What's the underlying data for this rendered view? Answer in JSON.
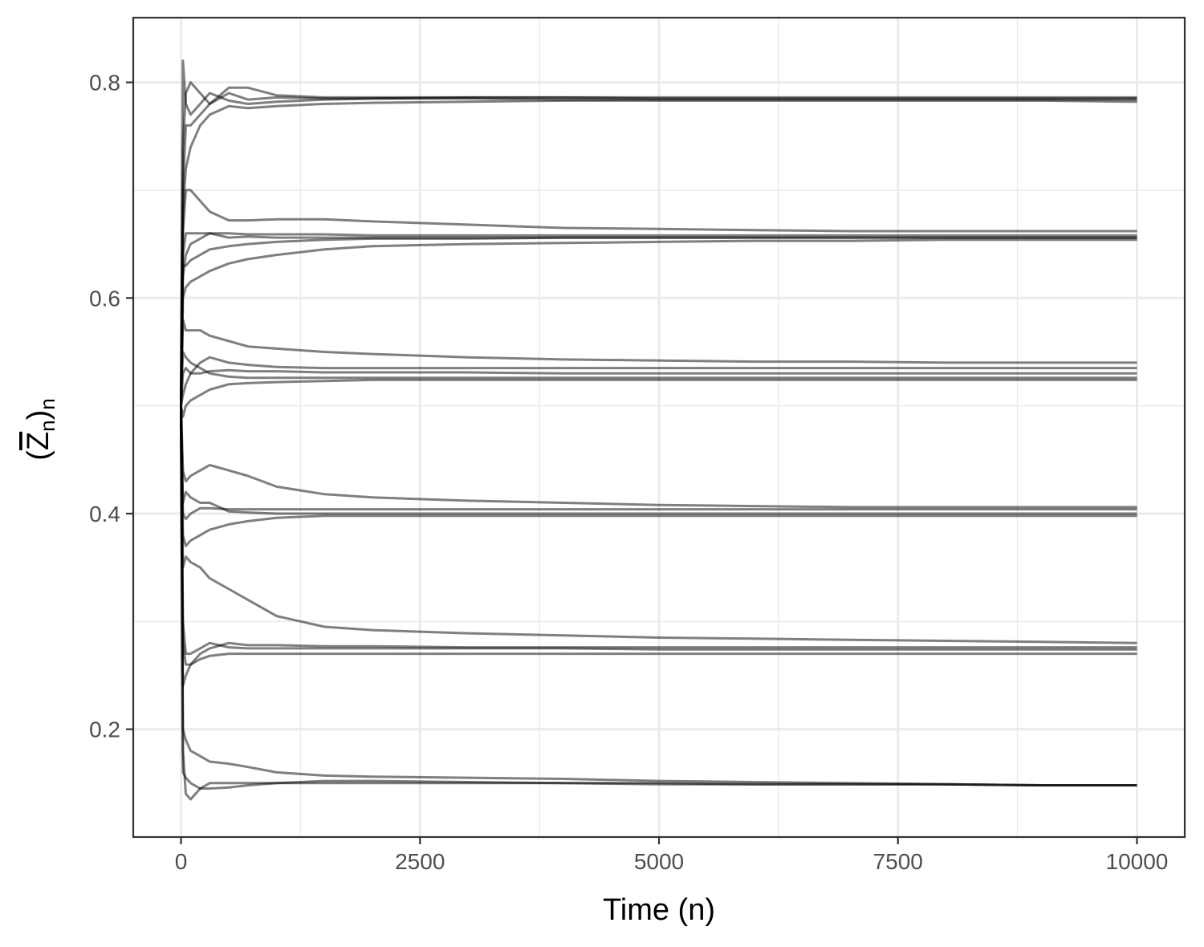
{
  "chart_data": {
    "type": "line",
    "title": "",
    "xlabel": "Time (n)",
    "ylabel": "(Z̄n)n",
    "ylabel_parts": {
      "open": "(",
      "var": "Z",
      "sub_inner": "n",
      "close": ")",
      "sub_outer": "n"
    },
    "xlim": [
      -500,
      10500
    ],
    "ylim": [
      0.1,
      0.86
    ],
    "x_ticks": [
      0,
      2500,
      5000,
      7500,
      10000
    ],
    "x_tick_labels": [
      "0",
      "2500",
      "5000",
      "7500",
      "10000"
    ],
    "y_ticks": [
      0.2,
      0.4,
      0.6,
      0.8
    ],
    "y_tick_labels": [
      "0.2",
      "0.4",
      "0.6",
      "0.8"
    ],
    "grid": true,
    "legend": "none",
    "series_color": "#000000",
    "series_opacity": 0.5,
    "x": [
      0,
      20,
      50,
      100,
      200,
      300,
      500,
      700,
      1000,
      1500,
      2000,
      3000,
      4000,
      5000,
      6000,
      7000,
      8000,
      9000,
      10000
    ],
    "series": [
      {
        "values": [
          0.5,
          0.74,
          0.79,
          0.8,
          0.79,
          0.78,
          0.79,
          0.784,
          0.786,
          0.785,
          0.785,
          0.785,
          0.784,
          0.784,
          0.784,
          0.784,
          0.784,
          0.784,
          0.784
        ]
      },
      {
        "values": [
          0.5,
          0.7,
          0.76,
          0.76,
          0.77,
          0.78,
          0.795,
          0.795,
          0.788,
          0.786,
          0.786,
          0.786,
          0.786,
          0.785,
          0.785,
          0.785,
          0.785,
          0.785,
          0.785
        ]
      },
      {
        "values": [
          0.5,
          0.68,
          0.72,
          0.74,
          0.76,
          0.77,
          0.778,
          0.776,
          0.778,
          0.78,
          0.781,
          0.782,
          0.783,
          0.783,
          0.783,
          0.783,
          0.783,
          0.783,
          0.782
        ]
      },
      {
        "values": [
          0.5,
          0.82,
          0.78,
          0.77,
          0.78,
          0.79,
          0.783,
          0.78,
          0.782,
          0.784,
          0.785,
          0.786,
          0.786,
          0.786,
          0.786,
          0.786,
          0.786,
          0.786,
          0.786
        ]
      },
      {
        "values": [
          0.5,
          0.66,
          0.7,
          0.7,
          0.69,
          0.68,
          0.672,
          0.672,
          0.673,
          0.673,
          0.671,
          0.668,
          0.665,
          0.664,
          0.663,
          0.662,
          0.662,
          0.662,
          0.662
        ]
      },
      {
        "values": [
          0.5,
          0.64,
          0.66,
          0.66,
          0.66,
          0.66,
          0.656,
          0.657,
          0.656,
          0.656,
          0.656,
          0.656,
          0.656,
          0.656,
          0.656,
          0.656,
          0.656,
          0.656,
          0.656
        ]
      },
      {
        "values": [
          0.5,
          0.62,
          0.64,
          0.65,
          0.655,
          0.66,
          0.66,
          0.659,
          0.659,
          0.659,
          0.658,
          0.658,
          0.658,
          0.658,
          0.658,
          0.658,
          0.658,
          0.658,
          0.658
        ]
      },
      {
        "values": [
          0.5,
          0.6,
          0.61,
          0.615,
          0.62,
          0.625,
          0.632,
          0.636,
          0.64,
          0.645,
          0.648,
          0.65,
          0.651,
          0.652,
          0.653,
          0.653,
          0.654,
          0.654,
          0.654
        ]
      },
      {
        "values": [
          0.5,
          0.63,
          0.63,
          0.635,
          0.64,
          0.645,
          0.648,
          0.65,
          0.652,
          0.654,
          0.655,
          0.655,
          0.656,
          0.656,
          0.656,
          0.656,
          0.656,
          0.656,
          0.656
        ]
      },
      {
        "values": [
          0.5,
          0.58,
          0.57,
          0.57,
          0.57,
          0.565,
          0.56,
          0.555,
          0.553,
          0.55,
          0.548,
          0.545,
          0.543,
          0.542,
          0.541,
          0.541,
          0.54,
          0.54,
          0.54
        ]
      },
      {
        "values": [
          0.5,
          0.53,
          0.535,
          0.53,
          0.53,
          0.532,
          0.533,
          0.532,
          0.532,
          0.531,
          0.531,
          0.531,
          0.53,
          0.53,
          0.53,
          0.53,
          0.53,
          0.53,
          0.53
        ]
      },
      {
        "values": [
          0.5,
          0.49,
          0.5,
          0.505,
          0.51,
          0.515,
          0.52,
          0.521,
          0.522,
          0.523,
          0.524,
          0.524,
          0.524,
          0.524,
          0.524,
          0.524,
          0.524,
          0.524,
          0.524
        ]
      },
      {
        "values": [
          0.5,
          0.51,
          0.52,
          0.53,
          0.54,
          0.545,
          0.54,
          0.538,
          0.536,
          0.535,
          0.535,
          0.535,
          0.535,
          0.535,
          0.535,
          0.535,
          0.535,
          0.535,
          0.535
        ]
      },
      {
        "values": [
          0.5,
          0.55,
          0.545,
          0.54,
          0.535,
          0.53,
          0.527,
          0.526,
          0.526,
          0.526,
          0.526,
          0.526,
          0.526,
          0.526,
          0.526,
          0.526,
          0.526,
          0.526,
          0.526
        ]
      },
      {
        "values": [
          0.5,
          0.44,
          0.43,
          0.435,
          0.44,
          0.445,
          0.44,
          0.435,
          0.425,
          0.418,
          0.415,
          0.412,
          0.41,
          0.408,
          0.407,
          0.406,
          0.406,
          0.406,
          0.406
        ]
      },
      {
        "values": [
          0.5,
          0.4,
          0.395,
          0.4,
          0.405,
          0.405,
          0.404,
          0.404,
          0.404,
          0.404,
          0.404,
          0.404,
          0.404,
          0.404,
          0.404,
          0.404,
          0.404,
          0.404,
          0.404
        ]
      },
      {
        "values": [
          0.5,
          0.38,
          0.37,
          0.375,
          0.38,
          0.385,
          0.39,
          0.393,
          0.396,
          0.398,
          0.398,
          0.398,
          0.398,
          0.398,
          0.398,
          0.398,
          0.398,
          0.398,
          0.398
        ]
      },
      {
        "values": [
          0.5,
          0.41,
          0.42,
          0.415,
          0.41,
          0.41,
          0.402,
          0.401,
          0.4,
          0.4,
          0.4,
          0.4,
          0.4,
          0.4,
          0.4,
          0.4,
          0.4,
          0.4,
          0.4
        ]
      },
      {
        "values": [
          0.5,
          0.3,
          0.27,
          0.27,
          0.275,
          0.28,
          0.276,
          0.275,
          0.275,
          0.275,
          0.275,
          0.275,
          0.275,
          0.274,
          0.274,
          0.274,
          0.274,
          0.274,
          0.274
        ]
      },
      {
        "values": [
          0.5,
          0.28,
          0.26,
          0.26,
          0.265,
          0.268,
          0.27,
          0.27,
          0.27,
          0.27,
          0.27,
          0.27,
          0.27,
          0.27,
          0.27,
          0.27,
          0.27,
          0.27,
          0.27
        ]
      },
      {
        "values": [
          0.5,
          0.35,
          0.36,
          0.355,
          0.35,
          0.34,
          0.33,
          0.32,
          0.305,
          0.295,
          0.292,
          0.289,
          0.287,
          0.285,
          0.284,
          0.283,
          0.282,
          0.281,
          0.28
        ]
      },
      {
        "values": [
          0.5,
          0.24,
          0.25,
          0.26,
          0.27,
          0.275,
          0.28,
          0.278,
          0.278,
          0.277,
          0.277,
          0.276,
          0.276,
          0.276,
          0.276,
          0.276,
          0.276,
          0.276,
          0.276
        ]
      },
      {
        "values": [
          0.5,
          0.18,
          0.14,
          0.135,
          0.145,
          0.15,
          0.15,
          0.15,
          0.15,
          0.15,
          0.15,
          0.15,
          0.15,
          0.149,
          0.149,
          0.149,
          0.149,
          0.148,
          0.148
        ]
      },
      {
        "values": [
          0.5,
          0.2,
          0.19,
          0.18,
          0.175,
          0.17,
          0.168,
          0.165,
          0.16,
          0.157,
          0.156,
          0.155,
          0.154,
          0.152,
          0.151,
          0.15,
          0.149,
          0.148,
          0.148
        ]
      },
      {
        "values": [
          0.5,
          0.16,
          0.155,
          0.15,
          0.145,
          0.145,
          0.146,
          0.148,
          0.15,
          0.152,
          0.152,
          0.151,
          0.15,
          0.15,
          0.149,
          0.149,
          0.149,
          0.148,
          0.148
        ]
      }
    ]
  }
}
